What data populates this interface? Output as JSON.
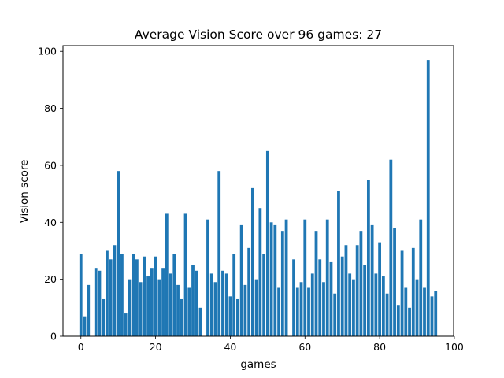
{
  "chart_data": {
    "type": "bar",
    "title": "Average Vision Score over 96 games: 27",
    "xlabel": "games",
    "ylabel": "Vision score",
    "xlim": [
      -4.8,
      99.8
    ],
    "ylim": [
      0,
      102
    ],
    "xticks": [
      0,
      20,
      40,
      60,
      80,
      100
    ],
    "yticks": [
      0,
      20,
      40,
      60,
      80,
      100
    ],
    "grid": false,
    "bar_color": "#1f77b4",
    "x": [
      0,
      1,
      2,
      3,
      4,
      5,
      6,
      7,
      8,
      9,
      10,
      11,
      12,
      13,
      14,
      15,
      16,
      17,
      18,
      19,
      20,
      21,
      22,
      23,
      24,
      25,
      26,
      27,
      28,
      29,
      30,
      31,
      32,
      33,
      34,
      35,
      36,
      37,
      38,
      39,
      40,
      41,
      42,
      43,
      44,
      45,
      46,
      47,
      48,
      49,
      50,
      51,
      52,
      53,
      54,
      55,
      56,
      57,
      58,
      59,
      60,
      61,
      62,
      63,
      64,
      65,
      66,
      67,
      68,
      69,
      70,
      71,
      72,
      73,
      74,
      75,
      76,
      77,
      78,
      79,
      80,
      81,
      82,
      83,
      84,
      85,
      86,
      87,
      88,
      89,
      90,
      91,
      92,
      93,
      94,
      95
    ],
    "values": [
      29,
      7,
      18,
      0,
      24,
      23,
      13,
      30,
      27,
      32,
      58,
      29,
      8,
      20,
      29,
      27,
      19,
      28,
      21,
      24,
      28,
      20,
      24,
      43,
      22,
      29,
      18,
      13,
      43,
      17,
      25,
      23,
      10,
      0,
      41,
      22,
      19,
      58,
      23,
      22,
      14,
      29,
      13,
      39,
      18,
      31,
      52,
      20,
      45,
      29,
      65,
      40,
      39,
      17,
      37,
      41,
      0,
      27,
      17,
      19,
      41,
      17,
      22,
      37,
      27,
      19,
      41,
      26,
      15,
      51,
      28,
      32,
      22,
      20,
      32,
      37,
      25,
      55,
      39,
      22,
      33,
      21,
      15,
      62,
      38,
      11,
      30,
      17,
      10,
      31,
      20,
      41,
      17,
      97,
      14,
      16
    ]
  }
}
